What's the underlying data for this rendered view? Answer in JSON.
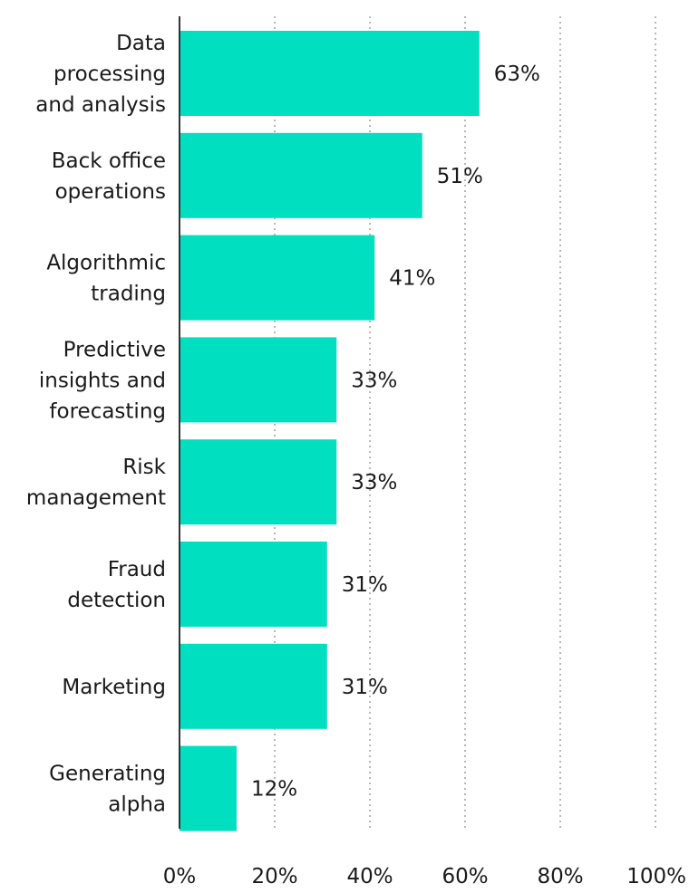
{
  "chart_data": {
    "type": "bar",
    "orientation": "horizontal",
    "title": "",
    "xlabel": "",
    "ylabel": "",
    "xlim": [
      0,
      100
    ],
    "grid": true,
    "legend": "none",
    "bar_color": "#00dfc0",
    "categories": [
      [
        "Data",
        "processing",
        "and analysis"
      ],
      [
        "Back office",
        "operations"
      ],
      [
        "Algorithmic",
        "trading"
      ],
      [
        "Predictive",
        "insights and",
        "forecasting"
      ],
      [
        "Risk",
        "management"
      ],
      [
        "Fraud",
        "detection"
      ],
      [
        "Marketing"
      ],
      [
        "Generating",
        "alpha"
      ]
    ],
    "values": [
      63,
      51,
      41,
      33,
      33,
      31,
      31,
      12
    ],
    "value_labels": [
      "63%",
      "51%",
      "41%",
      "33%",
      "33%",
      "31%",
      "31%",
      "12%"
    ],
    "x_ticks": [
      0,
      20,
      40,
      60,
      80,
      100
    ],
    "x_tick_labels": [
      "0%",
      "20%",
      "40%",
      "60%",
      "80%",
      "100%"
    ]
  }
}
